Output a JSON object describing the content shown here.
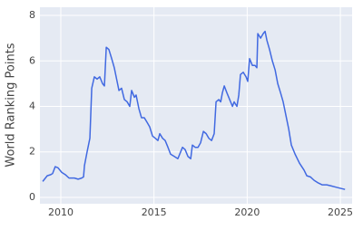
{
  "chart_data": {
    "type": "line",
    "y_label": "World Ranking Points",
    "x": [
      2009.03,
      2009.27,
      2009.46,
      2009.56,
      2009.7,
      2009.85,
      2010.05,
      2010.24,
      2010.44,
      2010.73,
      2010.93,
      2011.12,
      2011.22,
      2011.27,
      2011.41,
      2011.56,
      2011.66,
      2011.8,
      2011.95,
      2012.09,
      2012.24,
      2012.34,
      2012.44,
      2012.58,
      2012.73,
      2012.87,
      2013.02,
      2013.12,
      2013.26,
      2013.41,
      2013.56,
      2013.7,
      2013.8,
      2013.95,
      2014.04,
      2014.19,
      2014.33,
      2014.48,
      2014.63,
      2014.77,
      2014.92,
      2015.07,
      2015.21,
      2015.31,
      2015.46,
      2015.6,
      2015.75,
      2015.89,
      2016.09,
      2016.28,
      2016.38,
      2016.53,
      2016.67,
      2016.82,
      2016.97,
      2017.06,
      2017.21,
      2017.36,
      2017.5,
      2017.65,
      2017.8,
      2017.94,
      2018.09,
      2018.23,
      2018.33,
      2018.48,
      2018.58,
      2018.67,
      2018.77,
      2018.91,
      2019.06,
      2019.21,
      2019.3,
      2019.45,
      2019.55,
      2019.64,
      2019.79,
      2019.94,
      2020.03,
      2020.13,
      2020.28,
      2020.42,
      2020.52,
      2020.57,
      2020.72,
      2020.86,
      2020.96,
      2021.06,
      2021.2,
      2021.35,
      2021.5,
      2021.64,
      2021.79,
      2021.93,
      2022.08,
      2022.23,
      2022.37,
      2022.57,
      2022.81,
      2023.05,
      2023.2,
      2023.39,
      2023.59,
      2023.78,
      2024.03,
      2024.27,
      2024.52,
      2024.76,
      2025.0,
      2025.25
    ],
    "series": [
      {
        "color": "#4169e1",
        "values": [
          0.7,
          0.95,
          1.0,
          1.05,
          1.35,
          1.3,
          1.1,
          1.0,
          0.85,
          0.85,
          0.8,
          0.85,
          0.9,
          1.4,
          2.0,
          2.6,
          4.8,
          5.3,
          5.2,
          5.3,
          5.0,
          4.9,
          6.6,
          6.5,
          6.1,
          5.7,
          5.1,
          4.7,
          4.8,
          4.3,
          4.2,
          4.0,
          4.7,
          4.4,
          4.5,
          3.9,
          3.5,
          3.5,
          3.3,
          3.1,
          2.7,
          2.6,
          2.5,
          2.8,
          2.6,
          2.5,
          2.2,
          1.9,
          1.8,
          1.7,
          1.9,
          2.2,
          2.1,
          1.8,
          1.7,
          2.3,
          2.2,
          2.2,
          2.4,
          2.9,
          2.8,
          2.6,
          2.5,
          2.8,
          4.2,
          4.3,
          4.2,
          4.6,
          4.9,
          4.6,
          4.3,
          4.0,
          4.2,
          4.0,
          4.5,
          5.4,
          5.5,
          5.3,
          5.1,
          6.1,
          5.8,
          5.8,
          5.7,
          7.2,
          7.0,
          7.2,
          7.3,
          6.9,
          6.5,
          6.0,
          5.6,
          5.0,
          4.6,
          4.2,
          3.6,
          3.0,
          2.3,
          1.9,
          1.5,
          1.2,
          0.95,
          0.9,
          0.75,
          0.65,
          0.55,
          0.55,
          0.5,
          0.45,
          0.4,
          0.35
        ]
      }
    ],
    "xlim": [
      2008.88,
      2025.63
    ],
    "xticks": [
      2010,
      2015,
      2020,
      2025
    ],
    "ylim": [
      -0.28,
      8.36
    ],
    "yticks": [
      0,
      2,
      4,
      6,
      8
    ],
    "grid": true,
    "background": "#e5eaf3"
  }
}
